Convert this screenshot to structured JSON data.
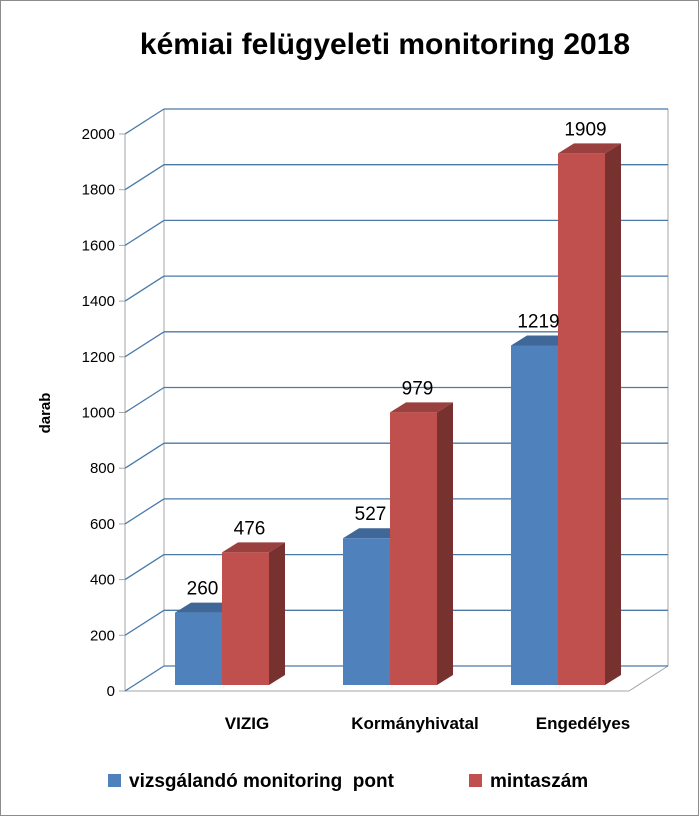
{
  "chart_data": {
    "type": "bar",
    "title": "kémiai felügyeleti monitoring 2018",
    "ylabel": "darab",
    "xlabel": "",
    "ylim": [
      0,
      2000
    ],
    "yticks": [
      0,
      200,
      400,
      600,
      800,
      1000,
      1200,
      1400,
      1600,
      1800,
      2000
    ],
    "grid": true,
    "legend_position": "bottom",
    "three_d": true,
    "categories": [
      "VIZIG",
      "Kormányhivatal",
      "Engedélyes"
    ],
    "series": [
      {
        "name": "vizsgálandó monitoring  pont",
        "values": [
          260,
          527,
          1219
        ],
        "color": "#4f81bd"
      },
      {
        "name": "mintaszám",
        "values": [
          476,
          979,
          1909
        ],
        "color": "#c0504d"
      }
    ]
  }
}
